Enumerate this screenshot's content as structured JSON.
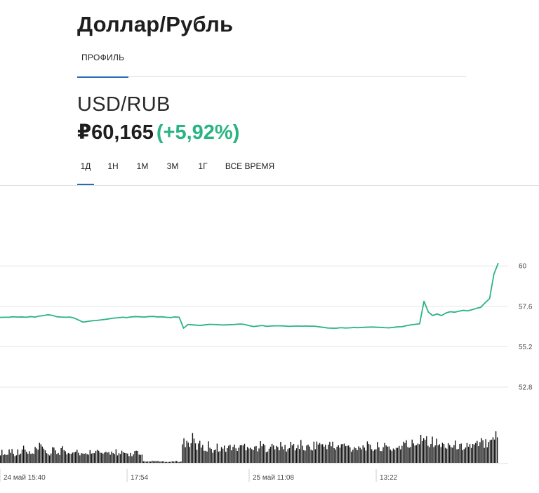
{
  "page": {
    "title": "Доллар/Рубль"
  },
  "nav": {
    "tabs": [
      {
        "label": "ПРОФИЛЬ",
        "active": true
      }
    ]
  },
  "quote": {
    "ticker": "USD/RUB",
    "price": "₽60,165",
    "change": "(+5,92%)",
    "change_color": "#2ab383"
  },
  "periods": [
    {
      "label": "1Д",
      "active": true
    },
    {
      "label": "1Н",
      "active": false
    },
    {
      "label": "1М",
      "active": false
    },
    {
      "label": "3М",
      "active": false
    },
    {
      "label": "1Г",
      "active": false
    },
    {
      "label": "ВСЕ ВРЕМЯ",
      "active": false
    }
  ],
  "colors": {
    "accent": "#2b6bb5",
    "line": "#2ab383",
    "volume": "#111111",
    "grid": "#e6e6e6"
  },
  "chart_data": {
    "type": "line",
    "title": "",
    "xlabel": "",
    "ylabel": "",
    "ylim": [
      50.8,
      61.3
    ],
    "yticks": [
      60,
      57.6,
      55.2,
      52.8
    ],
    "ytick_labels": [
      "60",
      "57.6",
      "55.2",
      "52.8"
    ],
    "xtick_labels": [
      "24 май 15:40",
      "17:54",
      "25 май 11:08",
      "13:22"
    ],
    "xtick_positions": [
      0,
      0.255,
      0.5,
      0.755
    ],
    "grid": true,
    "series": [
      {
        "values": [
          56.94,
          56.95,
          56.95,
          56.98,
          56.96,
          56.97,
          56.95,
          56.99,
          56.96,
          57.02,
          57.05,
          57.1,
          57.06,
          56.98,
          56.96,
          56.95,
          56.96,
          56.9,
          56.78,
          56.66,
          56.7,
          56.74,
          56.76,
          56.79,
          56.82,
          56.86,
          56.9,
          56.92,
          56.95,
          56.93,
          56.97,
          56.99,
          56.98,
          56.96,
          56.99,
          57.0,
          56.97,
          56.98,
          56.95,
          56.93,
          56.97,
          56.95,
          56.3,
          56.52,
          56.5,
          56.48,
          56.47,
          56.5,
          56.53,
          56.52,
          56.51,
          56.49,
          56.5,
          56.51,
          56.53,
          56.55,
          56.52,
          56.45,
          56.4,
          56.43,
          56.46,
          56.41,
          56.43,
          56.44,
          56.44,
          56.43,
          56.41,
          56.42,
          56.43,
          56.42,
          56.43,
          56.42,
          56.42,
          56.38,
          56.35,
          56.31,
          56.3,
          56.3,
          56.33,
          56.31,
          56.32,
          56.34,
          56.33,
          56.35,
          56.36,
          56.37,
          56.36,
          56.35,
          56.33,
          56.32,
          56.35,
          56.38,
          56.39,
          56.45,
          56.5,
          56.53,
          56.56,
          57.9,
          57.26,
          57.05,
          57.15,
          57.05,
          57.2,
          57.28,
          57.25,
          57.31,
          57.36,
          57.33,
          57.4,
          57.48,
          57.54,
          57.82,
          58.05,
          59.52,
          60.17
        ],
        "volume": [
          0.35,
          0.28,
          0.42,
          0.31,
          0.38,
          0.46,
          0.34,
          0.29,
          0.44,
          0.52,
          0.37,
          0.3,
          0.41,
          0.35,
          0.48,
          0.33,
          0.39,
          0.45,
          0.32,
          0.27,
          0.36,
          0.43,
          0.38,
          0.31,
          0.29,
          0.34,
          0.4,
          0.26,
          0.33,
          0.3,
          0.28,
          0.35,
          0.22,
          0.05,
          0.04,
          0.06,
          0.05,
          0.04,
          0.03,
          0.04,
          0.05,
          0.04,
          0.7,
          0.65,
          0.78,
          0.55,
          0.62,
          0.48,
          0.58,
          0.45,
          0.52,
          0.47,
          0.5,
          0.55,
          0.49,
          0.52,
          0.58,
          0.61,
          0.46,
          0.53,
          0.57,
          0.5,
          0.62,
          0.48,
          0.55,
          0.51,
          0.47,
          0.59,
          0.53,
          0.6,
          0.49,
          0.52,
          0.58,
          0.66,
          0.55,
          0.61,
          0.59,
          0.51,
          0.54,
          0.6,
          0.52,
          0.48,
          0.57,
          0.53,
          0.56,
          0.5,
          0.49,
          0.55,
          0.52,
          0.51,
          0.47,
          0.5,
          0.55,
          0.62,
          0.58,
          0.64,
          0.7,
          0.95,
          0.8,
          0.72,
          0.66,
          0.6,
          0.58,
          0.64,
          0.55,
          0.59,
          0.52,
          0.61,
          0.57,
          0.56,
          0.6,
          0.68,
          0.72,
          0.98,
          0.88
        ]
      }
    ]
  }
}
